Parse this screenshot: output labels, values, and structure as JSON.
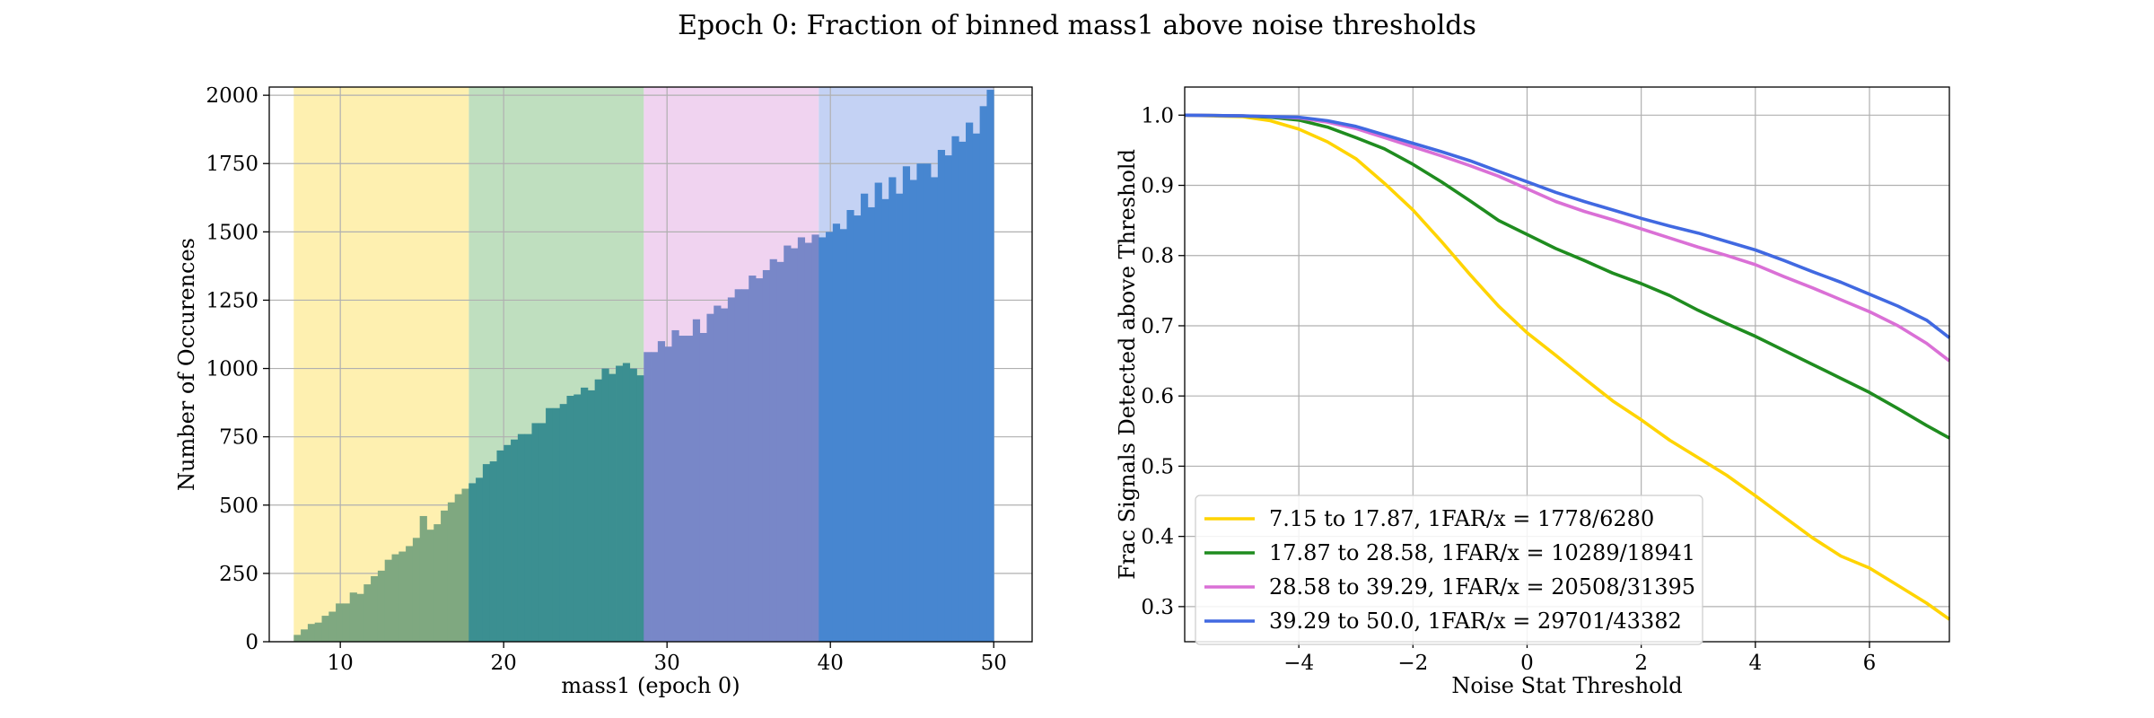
{
  "figure_title": "Epoch 0: Fraction of binned mass1 above noise thresholds",
  "chart_data": [
    {
      "type": "bar",
      "subtype": "histogram",
      "xlabel": "mass1 (epoch 0)",
      "ylabel": "Number of Occurences",
      "xlim": [
        5.65,
        52.35
      ],
      "ylim": [
        0,
        2030
      ],
      "xticks": [
        10,
        20,
        30,
        40,
        50
      ],
      "yticks": [
        0,
        250,
        500,
        750,
        1000,
        1250,
        1500,
        1750,
        2000
      ],
      "grid": true,
      "bin_start": 7.15,
      "bin_width": 0.4285,
      "values": [
        25,
        45,
        65,
        70,
        95,
        110,
        140,
        140,
        180,
        175,
        210,
        240,
        260,
        300,
        320,
        330,
        350,
        380,
        460,
        410,
        430,
        480,
        510,
        540,
        560,
        580,
        600,
        650,
        660,
        700,
        720,
        740,
        760,
        760,
        800,
        800,
        855,
        855,
        870,
        900,
        905,
        930,
        920,
        960,
        1000,
        980,
        1010,
        1020,
        1000,
        975,
        1060,
        1060,
        1100,
        1080,
        1140,
        1120,
        1120,
        1180,
        1130,
        1200,
        1230,
        1220,
        1260,
        1290,
        1290,
        1340,
        1330,
        1360,
        1400,
        1390,
        1450,
        1440,
        1480,
        1460,
        1490,
        1480,
        1500,
        1530,
        1510,
        1580,
        1560,
        1640,
        1590,
        1680,
        1620,
        1700,
        1640,
        1740,
        1690,
        1750,
        1750,
        1700,
        1800,
        1780,
        1850,
        1830,
        1900,
        1860,
        1960,
        2020
      ],
      "mass_bins": [
        {
          "range": [
            7.15,
            17.87
          ],
          "band_color": "#fef0b0",
          "bar_color": "#7fa880"
        },
        {
          "range": [
            17.87,
            28.58
          ],
          "band_color": "#bfdfbf",
          "bar_color": "#3b8f91"
        },
        {
          "range": [
            28.58,
            39.29
          ],
          "band_color": "#f0d3f0",
          "bar_color": "#7887c8"
        },
        {
          "range": [
            39.29,
            50.0
          ],
          "band_color": "#c4d2f4",
          "bar_color": "#4786d0"
        }
      ]
    },
    {
      "type": "line",
      "xlabel": "Noise Stat Threshold",
      "ylabel": "Frac Signals Detected above Threshold",
      "xlim": [
        -6.0,
        7.4
      ],
      "ylim": [
        0.25,
        1.04
      ],
      "xticks": [
        -4,
        -2,
        0,
        2,
        4,
        6
      ],
      "xtick_labels": [
        "−4",
        "−2",
        "0",
        "2",
        "4",
        "6"
      ],
      "yticks": [
        0.3,
        0.4,
        0.5,
        0.6,
        0.7,
        0.8,
        0.9,
        1.0
      ],
      "ytick_labels": [
        "0.3",
        "0.4",
        "0.5",
        "0.6",
        "0.7",
        "0.8",
        "0.9",
        "1.0"
      ],
      "grid": true,
      "legend_position": "lower-left",
      "x": [
        -6.0,
        -5.0,
        -4.5,
        -4.0,
        -3.5,
        -3.0,
        -2.5,
        -2.0,
        -1.5,
        -1.0,
        -0.5,
        0.0,
        0.5,
        1.0,
        1.5,
        2.0,
        2.5,
        3.0,
        3.5,
        4.0,
        4.5,
        5.0,
        5.5,
        6.0,
        6.5,
        7.0,
        7.4
      ],
      "series": [
        {
          "name": "7.15 to 17.87, 1FAR/x = 1778/6280",
          "color": "#ffd400",
          "values": [
            1.0,
            0.998,
            0.992,
            0.98,
            0.962,
            0.938,
            0.903,
            0.865,
            0.82,
            0.773,
            0.728,
            0.69,
            0.658,
            0.625,
            0.593,
            0.566,
            0.537,
            0.512,
            0.487,
            0.458,
            0.428,
            0.398,
            0.372,
            0.355,
            0.33,
            0.305,
            0.282
          ]
        },
        {
          "name": "17.87 to 28.58, 1FAR/x = 10289/18941",
          "color": "#1f8c1f",
          "values": [
            1.0,
            0.999,
            0.997,
            0.993,
            0.983,
            0.968,
            0.952,
            0.93,
            0.905,
            0.878,
            0.85,
            0.83,
            0.81,
            0.793,
            0.775,
            0.76,
            0.743,
            0.722,
            0.703,
            0.685,
            0.665,
            0.645,
            0.625,
            0.605,
            0.582,
            0.558,
            0.54
          ]
        },
        {
          "name": "28.58 to 39.29, 1FAR/x = 20508/31395",
          "color": "#da70d6",
          "values": [
            1.0,
            0.999,
            0.998,
            0.996,
            0.99,
            0.981,
            0.968,
            0.955,
            0.942,
            0.928,
            0.913,
            0.895,
            0.877,
            0.863,
            0.851,
            0.838,
            0.825,
            0.812,
            0.8,
            0.787,
            0.77,
            0.754,
            0.737,
            0.72,
            0.7,
            0.675,
            0.65
          ]
        },
        {
          "name": "39.29 to 50.0, 1FAR/x = 29701/43382",
          "color": "#4169e1",
          "values": [
            1.0,
            0.999,
            0.998,
            0.997,
            0.992,
            0.984,
            0.972,
            0.96,
            0.948,
            0.935,
            0.92,
            0.905,
            0.89,
            0.877,
            0.865,
            0.853,
            0.842,
            0.832,
            0.82,
            0.808,
            0.793,
            0.777,
            0.762,
            0.745,
            0.728,
            0.708,
            0.683
          ]
        }
      ]
    }
  ]
}
